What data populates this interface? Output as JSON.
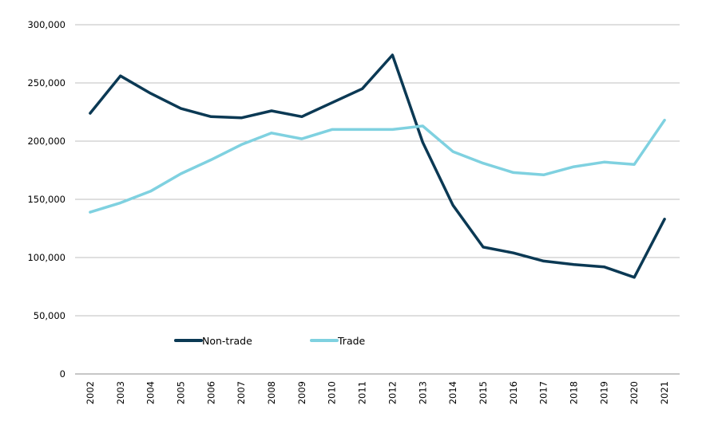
{
  "chart_data": {
    "type": "line",
    "title": "",
    "xlabel": "",
    "ylabel": "",
    "x": [
      "2002",
      "2003",
      "2004",
      "2005",
      "2006",
      "2007",
      "2008",
      "2009",
      "2010",
      "2011",
      "2012",
      "2013",
      "2014",
      "2015",
      "2016",
      "2017",
      "2018",
      "2019",
      "2020",
      "2021"
    ],
    "ylim": [
      0,
      300000
    ],
    "yticks": [
      0,
      50000,
      100000,
      150000,
      200000,
      250000,
      300000
    ],
    "ytick_labels": [
      "0",
      "50,000",
      "100,000",
      "150,000",
      "200,000",
      "250,000",
      "300,000"
    ],
    "grid": true,
    "legend_position": "bottom-center",
    "series": [
      {
        "name": "Non-trade",
        "color": "#0b3954",
        "values": [
          224000,
          256000,
          241000,
          228000,
          221000,
          220000,
          226000,
          221000,
          233000,
          245000,
          274000,
          199000,
          145000,
          109000,
          104000,
          97000,
          94000,
          92000,
          83000,
          133000
        ]
      },
      {
        "name": "Trade",
        "color": "#7fd1e0",
        "values": [
          139000,
          147000,
          157000,
          172000,
          184000,
          197000,
          207000,
          202000,
          210000,
          210000,
          210000,
          213000,
          191000,
          181000,
          173000,
          171000,
          178000,
          182000,
          180000,
          218000
        ]
      }
    ]
  }
}
